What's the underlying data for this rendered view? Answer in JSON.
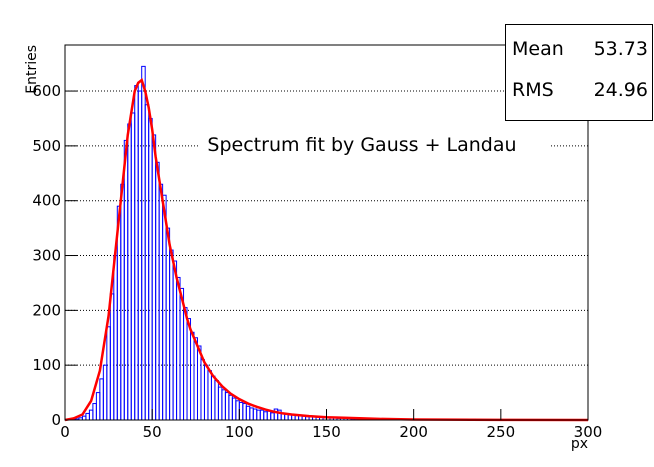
{
  "chart_data": {
    "type": "histogram",
    "title": "Spectrum fit by Gauss + Landau",
    "x_label": "px",
    "y_label": "Entries",
    "color": "#0000ff",
    "bins": [
      0,
      2,
      4,
      6,
      8,
      10,
      12,
      14,
      16,
      18,
      20,
      22,
      24,
      26,
      28,
      30,
      32,
      34,
      36,
      38,
      40,
      42,
      44,
      46,
      48,
      50,
      52,
      54,
      56,
      58,
      60,
      62,
      64,
      66,
      68,
      70,
      72,
      74,
      76,
      78,
      80,
      82,
      84,
      86,
      88,
      90,
      92,
      94,
      96,
      98,
      100,
      102,
      104,
      106,
      108,
      110,
      112,
      114,
      116,
      118,
      120,
      122,
      124,
      126,
      128,
      130,
      132,
      134,
      136,
      138,
      140,
      142,
      144,
      146,
      148,
      150,
      152,
      154,
      156,
      158,
      160,
      162,
      164,
      166,
      168,
      170,
      172,
      174,
      176,
      178,
      180,
      182,
      184,
      186,
      188,
      190,
      192,
      194,
      196,
      198,
      200,
      202,
      204,
      206,
      208,
      210,
      212,
      214,
      216,
      218,
      220,
      222,
      224,
      226,
      228,
      230,
      232,
      234,
      236,
      238,
      240,
      242,
      244,
      246,
      248,
      250,
      252,
      254,
      256,
      258,
      260,
      262,
      264,
      266,
      268,
      270,
      272,
      274,
      276,
      278,
      280,
      282,
      284,
      286,
      288,
      290,
      292,
      294,
      296,
      298,
      300
    ],
    "counts": [
      0,
      0,
      1,
      2,
      4,
      7,
      12,
      18,
      30,
      50,
      75,
      100,
      170,
      230,
      300,
      390,
      430,
      510,
      540,
      560,
      610,
      600,
      645,
      575,
      550,
      520,
      470,
      430,
      410,
      350,
      310,
      290,
      260,
      240,
      205,
      185,
      160,
      150,
      135,
      110,
      100,
      90,
      80,
      72,
      60,
      55,
      50,
      45,
      40,
      35,
      32,
      30,
      25,
      22,
      20,
      18,
      18,
      15,
      16,
      13,
      20,
      18,
      12,
      10,
      9,
      10,
      8,
      9,
      7,
      6,
      6,
      7,
      5,
      5,
      4,
      5,
      4,
      4,
      3,
      4,
      3,
      3,
      2,
      2,
      2,
      2,
      2,
      1,
      2,
      1,
      1,
      1,
      1,
      1,
      1,
      0,
      1,
      0,
      1,
      0,
      1,
      0,
      0,
      1,
      0,
      0,
      0,
      0,
      0,
      0,
      0,
      0,
      0,
      0,
      0,
      0,
      0,
      0,
      0,
      0,
      0,
      0,
      0,
      0,
      0,
      0,
      0,
      0,
      0,
      0,
      0,
      0,
      0,
      0,
      0,
      0,
      0,
      0,
      0,
      0,
      0,
      0,
      0,
      0,
      0,
      0,
      0,
      0,
      0,
      0
    ],
    "fit": {
      "color": "#ff0000",
      "x": [
        0,
        5,
        10,
        15,
        20,
        25,
        28,
        30,
        32,
        34,
        36,
        38,
        40,
        42,
        44,
        46,
        48,
        50,
        52,
        54,
        56,
        58,
        60,
        62,
        64,
        66,
        68,
        70,
        72,
        74,
        76,
        78,
        80,
        85,
        90,
        95,
        100,
        105,
        110,
        115,
        120,
        125,
        130,
        140,
        150,
        160,
        180,
        200,
        250,
        300
      ],
      "y": [
        0,
        3,
        10,
        35,
        90,
        190,
        280,
        340,
        400,
        460,
        520,
        560,
        600,
        615,
        620,
        600,
        570,
        530,
        480,
        440,
        400,
        360,
        320,
        290,
        260,
        235,
        210,
        185,
        165,
        150,
        135,
        120,
        105,
        80,
        62,
        48,
        38,
        30,
        24,
        19,
        15,
        12,
        10,
        7,
        5,
        4,
        2,
        1,
        0.3,
        0.1
      ]
    },
    "xlim": [
      0,
      300
    ],
    "ylim": [
      0,
      684
    ],
    "xticks": [
      0,
      50,
      100,
      150,
      200,
      250,
      300
    ],
    "yticks": [
      0,
      100,
      200,
      300,
      400,
      500,
      600
    ],
    "grid": true,
    "stats": [
      {
        "name": "Mean",
        "value": 53.73
      },
      {
        "name": "RMS",
        "value": 24.96
      }
    ]
  }
}
